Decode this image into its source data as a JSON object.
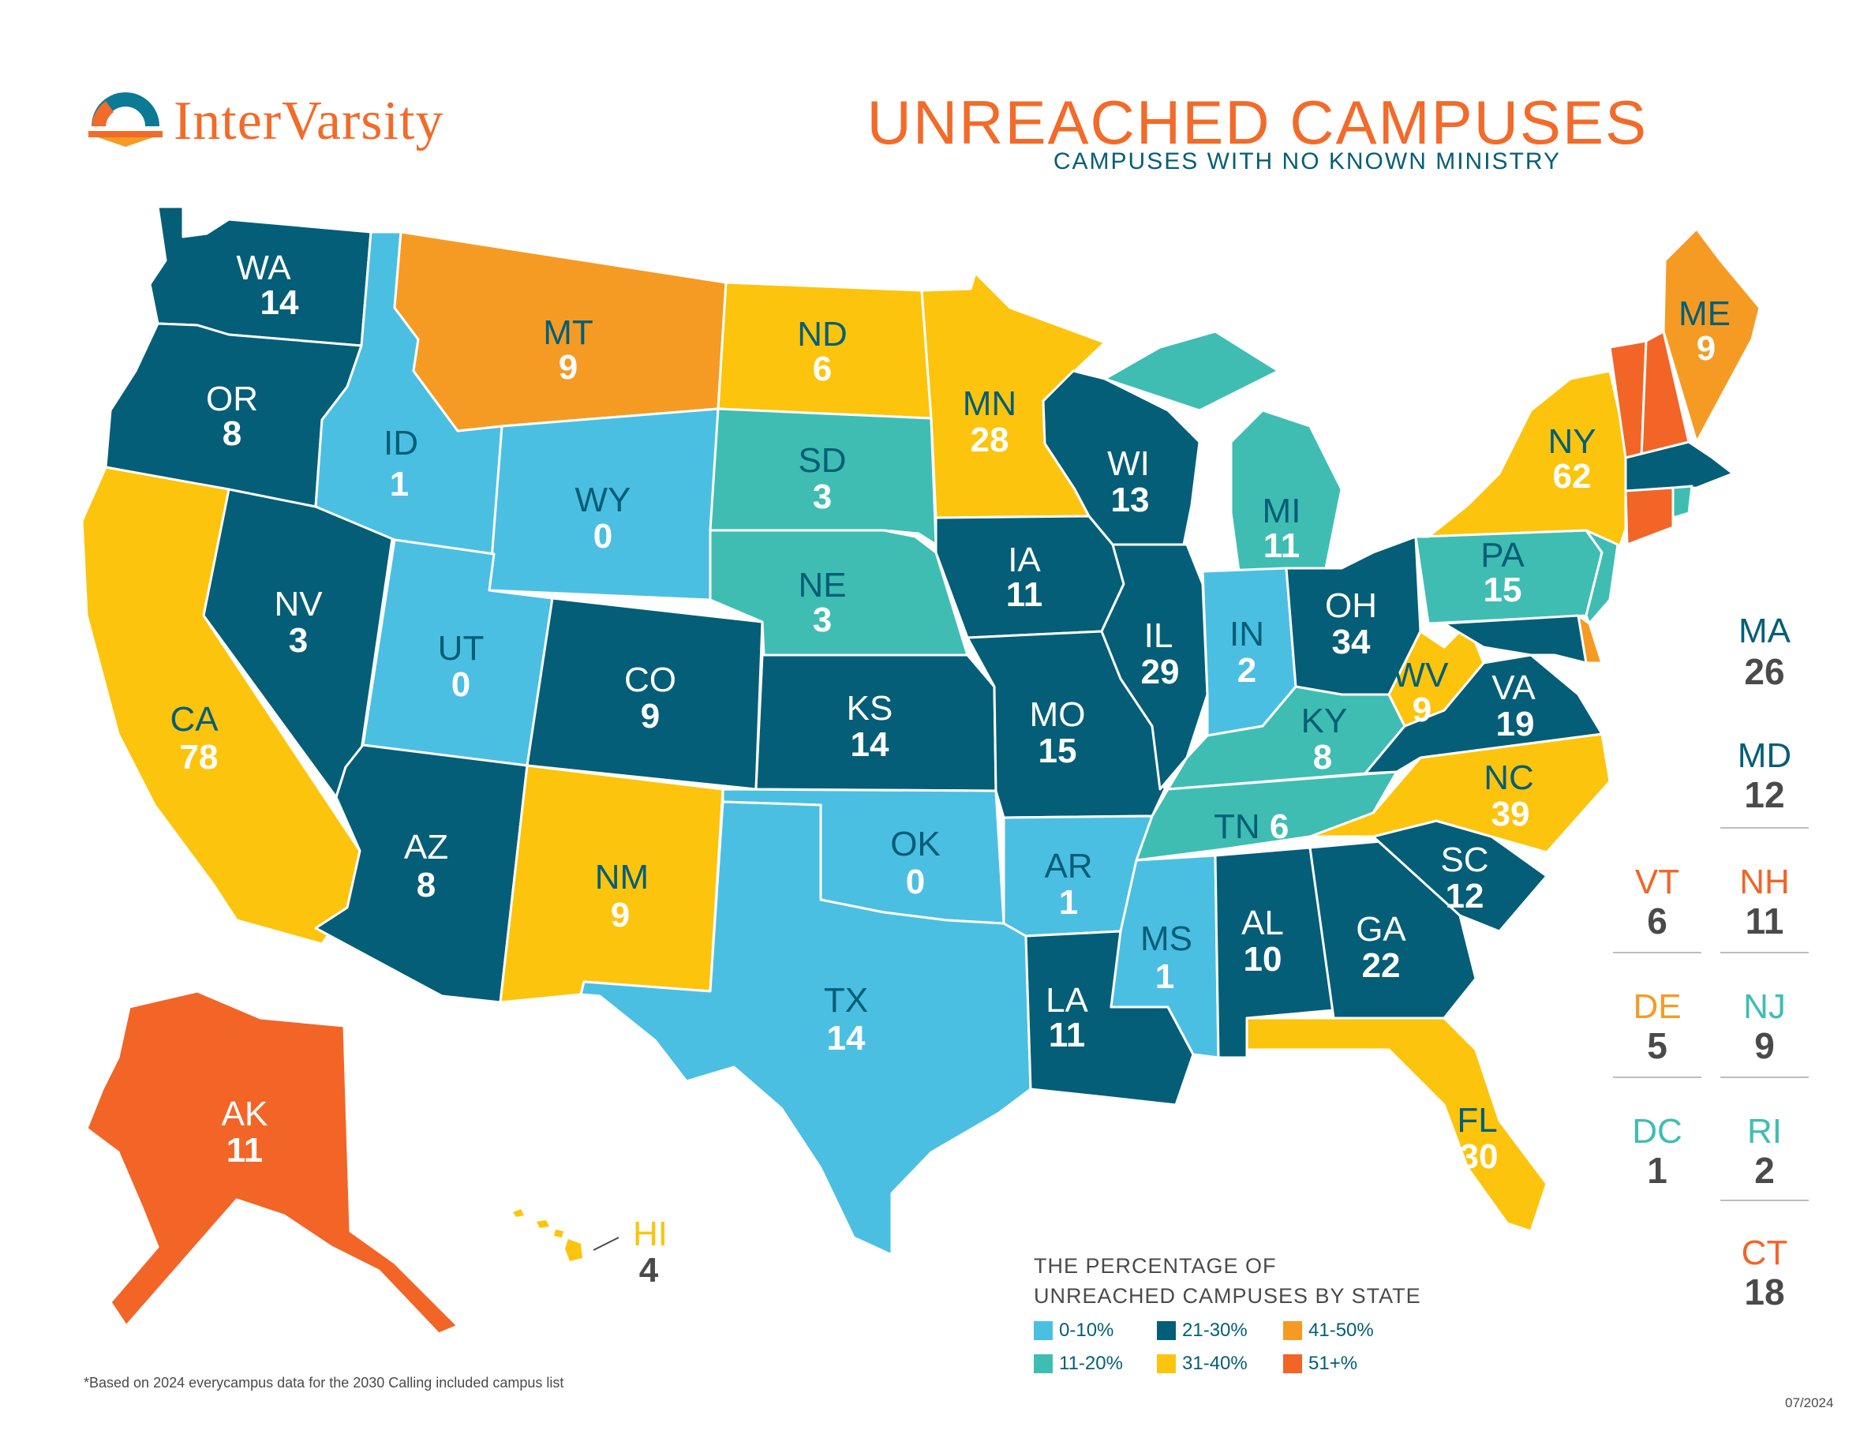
{
  "header": {
    "brand": "InterVarsity",
    "title": "UNREACHED CAMPUSES",
    "subtitle": "CAMPUSES WITH NO KNOWN MINISTRY"
  },
  "colors": {
    "c0_10": "#4bbfe2",
    "c11_20": "#3fbdb3",
    "c21_30": "#045e77",
    "c31_40": "#fdc40d",
    "c41_50": "#f59b24",
    "c51": "#f26527",
    "brand_orange": "#f26b2a",
    "text_dark": "#4a4a4a"
  },
  "states": {
    "WA": {
      "abbr": "WA",
      "count": "14",
      "band": "21-30%"
    },
    "OR": {
      "abbr": "OR",
      "count": "8",
      "band": "21-30%"
    },
    "CA": {
      "abbr": "CA",
      "count": "78",
      "band": "31-40%"
    },
    "ID": {
      "abbr": "ID",
      "count": "1",
      "band": "0-10%"
    },
    "NV": {
      "abbr": "NV",
      "count": "3",
      "band": "21-30%"
    },
    "MT": {
      "abbr": "MT",
      "count": "9",
      "band": "41-50%"
    },
    "WY": {
      "abbr": "WY",
      "count": "0",
      "band": "0-10%"
    },
    "UT": {
      "abbr": "UT",
      "count": "0",
      "band": "0-10%"
    },
    "AZ": {
      "abbr": "AZ",
      "count": "8",
      "band": "21-30%"
    },
    "CO": {
      "abbr": "CO",
      "count": "9",
      "band": "21-30%"
    },
    "NM": {
      "abbr": "NM",
      "count": "9",
      "band": "31-40%"
    },
    "ND": {
      "abbr": "ND",
      "count": "6",
      "band": "31-40%"
    },
    "SD": {
      "abbr": "SD",
      "count": "3",
      "band": "11-20%"
    },
    "NE": {
      "abbr": "NE",
      "count": "3",
      "band": "11-20%"
    },
    "KS": {
      "abbr": "KS",
      "count": "14",
      "band": "21-30%"
    },
    "OK": {
      "abbr": "OK",
      "count": "0",
      "band": "0-10%"
    },
    "TX": {
      "abbr": "TX",
      "count": "14",
      "band": "0-10%"
    },
    "MN": {
      "abbr": "MN",
      "count": "28",
      "band": "31-40%"
    },
    "IA": {
      "abbr": "IA",
      "count": "11",
      "band": "21-30%"
    },
    "MO": {
      "abbr": "MO",
      "count": "15",
      "band": "21-30%"
    },
    "AR": {
      "abbr": "AR",
      "count": "1",
      "band": "0-10%"
    },
    "LA": {
      "abbr": "LA",
      "count": "11",
      "band": "21-30%"
    },
    "WI": {
      "abbr": "WI",
      "count": "13",
      "band": "21-30%"
    },
    "IL": {
      "abbr": "IL",
      "count": "29",
      "band": "21-30%"
    },
    "MI": {
      "abbr": "MI",
      "count": "11",
      "band": "11-20%"
    },
    "IN": {
      "abbr": "IN",
      "count": "2",
      "band": "0-10%"
    },
    "OH": {
      "abbr": "OH",
      "count": "34",
      "band": "21-30%"
    },
    "KY": {
      "abbr": "KY",
      "count": "8",
      "band": "11-20%"
    },
    "TN": {
      "abbr": "TN",
      "count": "6",
      "band": "11-20%"
    },
    "MS": {
      "abbr": "MS",
      "count": "1",
      "band": "0-10%"
    },
    "AL": {
      "abbr": "AL",
      "count": "10",
      "band": "21-30%"
    },
    "GA": {
      "abbr": "GA",
      "count": "22",
      "band": "21-30%"
    },
    "FL": {
      "abbr": "FL",
      "count": "30",
      "band": "31-40%"
    },
    "SC": {
      "abbr": "SC",
      "count": "12",
      "band": "21-30%"
    },
    "NC": {
      "abbr": "NC",
      "count": "39",
      "band": "31-40%"
    },
    "VA": {
      "abbr": "VA",
      "count": "19",
      "band": "21-30%"
    },
    "WV": {
      "abbr": "WV",
      "count": "9",
      "band": "31-40%"
    },
    "PA": {
      "abbr": "PA",
      "count": "15",
      "band": "11-20%"
    },
    "NY": {
      "abbr": "NY",
      "count": "62",
      "band": "31-40%"
    },
    "ME": {
      "abbr": "ME",
      "count": "9",
      "band": "41-50%"
    },
    "AK": {
      "abbr": "AK",
      "count": "11",
      "band": "51+%"
    },
    "HI": {
      "abbr": "HI",
      "count": "4",
      "band": "31-40%"
    }
  },
  "sidebar": [
    {
      "abbr": "MA",
      "count": "26",
      "band": "21-30%"
    },
    {
      "abbr": "MD",
      "count": "12",
      "band": "21-30%"
    },
    {
      "abbr": "VT",
      "count": "6",
      "band": "51+%"
    },
    {
      "abbr": "NH",
      "count": "11",
      "band": "51+%"
    },
    {
      "abbr": "DE",
      "count": "5",
      "band": "41-50%"
    },
    {
      "abbr": "NJ",
      "count": "9",
      "band": "11-20%"
    },
    {
      "abbr": "DC",
      "count": "1",
      "band": "11-20%"
    },
    {
      "abbr": "RI",
      "count": "2",
      "band": "11-20%"
    },
    {
      "abbr": "CT",
      "count": "18",
      "band": "51+%"
    }
  ],
  "legend": {
    "title_line1": "THE PERCENTAGE OF",
    "title_line2": "UNREACHED CAMPUSES BY STATE",
    "items": [
      {
        "label": "0-10%",
        "color": "#4bbfe2"
      },
      {
        "label": "21-30%",
        "color": "#045e77"
      },
      {
        "label": "41-50%",
        "color": "#f59b24"
      },
      {
        "label": "11-20%",
        "color": "#3fbdb3"
      },
      {
        "label": "31-40%",
        "color": "#fdc40d"
      },
      {
        "label": "51+%",
        "color": "#f26527"
      }
    ]
  },
  "footnote": "*Based on 2024 everycampus data for the 2030 Calling included campus list",
  "date": "07/2024"
}
